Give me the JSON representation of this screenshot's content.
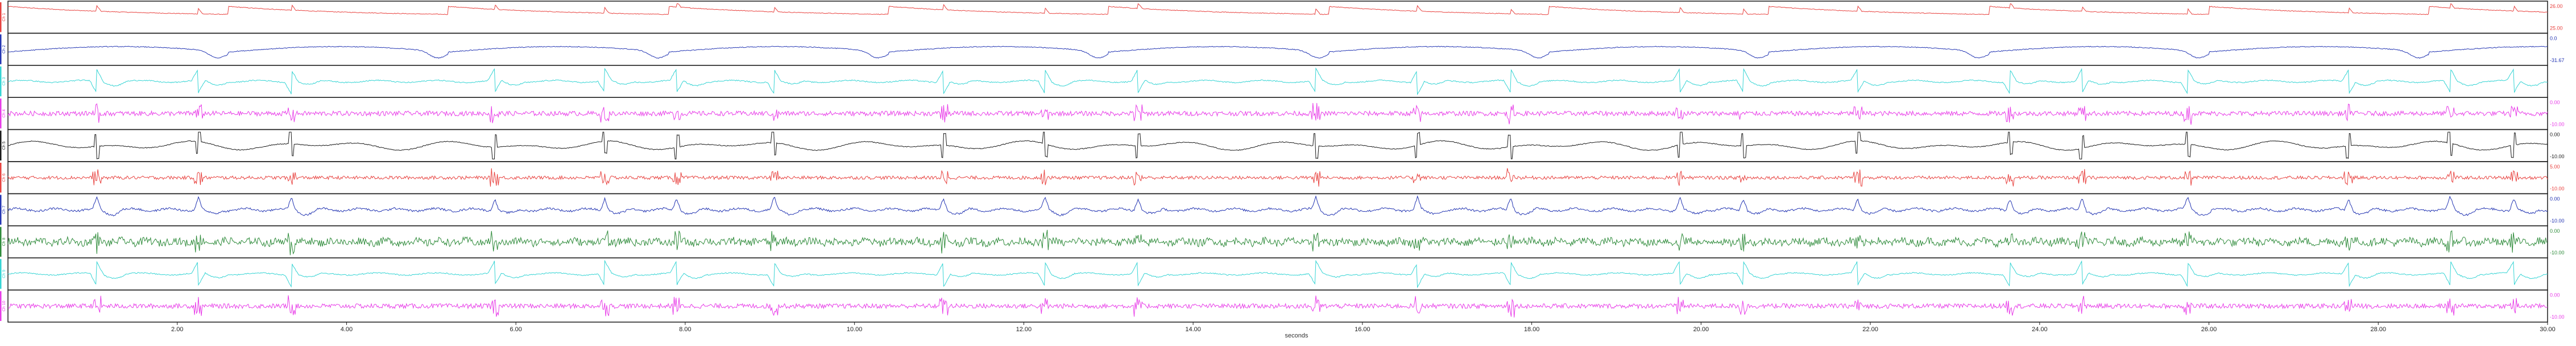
{
  "chart_data": {
    "type": "line",
    "xlabel": "seconds",
    "xlim": [
      0,
      30
    ],
    "x_ticks": [
      "2.00",
      "4.00",
      "6.00",
      "8.00",
      "10.00",
      "12.00",
      "14.00",
      "16.00",
      "18.00",
      "20.00",
      "22.00",
      "24.00",
      "26.00",
      "28.00",
      "30.00"
    ],
    "x_tick_values": [
      2,
      4,
      6,
      8,
      10,
      12,
      14,
      16,
      18,
      20,
      22,
      24,
      26,
      28,
      30
    ],
    "events_s": [
      1.05,
      2.25,
      3.35,
      5.75,
      7.05,
      7.9,
      9.05,
      11.05,
      12.25,
      13.35,
      15.45,
      16.65,
      17.75,
      19.75,
      20.5,
      21.85,
      23.65,
      24.5,
      25.75,
      27.65,
      28.85,
      29.6
    ],
    "channels": [
      {
        "name": "Ch 1",
        "color": "#e8423f",
        "unit": "",
        "ticks": [
          "26.00",
          "25.00"
        ],
        "kind": "resp"
      },
      {
        "name": "Ch 2",
        "color": "#2436b3",
        "unit": "",
        "ticks": [
          "0.0",
          "-31.67"
        ],
        "kind": "resp2"
      },
      {
        "name": "Ch 3",
        "color": "#35d4d4",
        "unit": "",
        "ticks": [
          "",
          ""
        ],
        "kind": "cyan"
      },
      {
        "name": "Ch 4",
        "color": "#e83ce8",
        "unit": "",
        "ticks": [
          "0.00",
          "-10.00"
        ],
        "kind": "noise"
      },
      {
        "name": "Ch 5",
        "color": "#1a1a1a",
        "unit": "",
        "ticks": [
          "0.00",
          "-10.00"
        ],
        "kind": "black"
      },
      {
        "name": "Ch 6",
        "color": "#e8423f",
        "unit": "",
        "ticks": [
          "5.00",
          "-10.00"
        ],
        "kind": "noiseR"
      },
      {
        "name": "Ch 7",
        "color": "#2436b3",
        "unit": "",
        "ticks": [
          "0.00",
          "-10.00"
        ],
        "kind": "blueSpk"
      },
      {
        "name": "Ch 8",
        "color": "#2e8b3a",
        "unit": "",
        "ticks": [
          "0.00",
          "-10.00"
        ],
        "kind": "green"
      },
      {
        "name": "Ch 9",
        "color": "#35d4d4",
        "unit": "",
        "ticks": [
          "",
          ""
        ],
        "kind": "cyan"
      },
      {
        "name": "Ch 10",
        "color": "#e83ce8",
        "unit": "",
        "ticks": [
          "0.00",
          "-10.00"
        ],
        "kind": "noise"
      }
    ]
  }
}
